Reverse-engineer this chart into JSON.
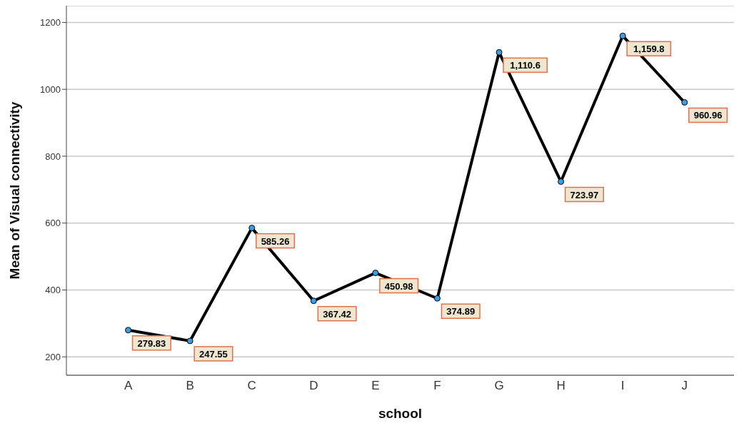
{
  "chart_data": {
    "type": "line",
    "xlabel": "school",
    "ylabel": "Mean of Visual connectivity",
    "categories": [
      "A",
      "B",
      "C",
      "D",
      "E",
      "F",
      "G",
      "H",
      "I",
      "J"
    ],
    "series": [
      {
        "color": "#000000",
        "values": [
          279.83,
          247.55,
          585.26,
          367.42,
          450.98,
          374.89,
          1110.6,
          723.97,
          1159.8,
          960.96
        ],
        "value_labels": [
          "279.83",
          "247.55",
          "585.26",
          "367.42",
          "450.98",
          "374.89",
          "1,110.6",
          "723.97",
          "1,159.8",
          "960.96"
        ]
      }
    ],
    "ylim": [
      145,
      1250
    ],
    "yticks": [
      200,
      400,
      600,
      800,
      1000,
      1200
    ],
    "grid": "y",
    "marker": "circle",
    "line_style": "solid"
  }
}
